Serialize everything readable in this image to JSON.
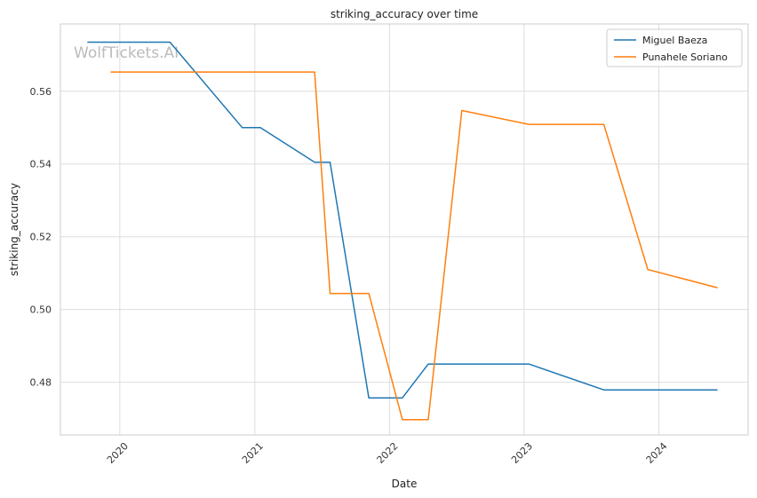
{
  "chart_data": {
    "type": "line",
    "title": "striking_accuracy over time",
    "xlabel": "Date",
    "ylabel": "striking_accuracy",
    "watermark": "WolfTickets.AI",
    "x_ticks": [
      "2020",
      "2021",
      "2022",
      "2023",
      "2024"
    ],
    "y_ticks": [
      "0.48",
      "0.50",
      "0.52",
      "0.54",
      "0.56"
    ],
    "xlim": [
      "2019-07-24",
      "2024-08-30"
    ],
    "ylim": [
      0.4655,
      0.5785
    ],
    "grid": true,
    "legend_position": "top-right",
    "series": [
      {
        "name": "Miguel Baeza",
        "color": "#1f77b4",
        "points": [
          [
            "2019-10-05",
            0.5735
          ],
          [
            "2020-05-16",
            0.5735
          ],
          [
            "2020-11-28",
            0.55
          ],
          [
            "2021-01-16",
            0.55
          ],
          [
            "2021-06-12",
            0.5405
          ],
          [
            "2021-07-24",
            0.5405
          ],
          [
            "2021-11-06",
            0.4757
          ],
          [
            "2022-02-05",
            0.4757
          ],
          [
            "2022-04-16",
            0.485
          ],
          [
            "2023-01-14",
            0.485
          ],
          [
            "2023-08-05",
            0.4779
          ],
          [
            "2024-06-08",
            0.4779
          ]
        ]
      },
      {
        "name": "Punahele Soriano",
        "color": "#ff7f0e",
        "points": [
          [
            "2019-12-07",
            0.5653
          ],
          [
            "2021-06-12",
            0.5653
          ],
          [
            "2021-07-24",
            0.5044
          ],
          [
            "2021-11-06",
            0.5044
          ],
          [
            "2022-02-05",
            0.4697
          ],
          [
            "2022-04-16",
            0.4697
          ],
          [
            "2022-07-16",
            0.5547
          ],
          [
            "2023-01-14",
            0.5509
          ],
          [
            "2023-08-05",
            0.5509
          ],
          [
            "2023-12-02",
            0.511
          ],
          [
            "2024-06-08",
            0.506
          ]
        ]
      }
    ]
  }
}
